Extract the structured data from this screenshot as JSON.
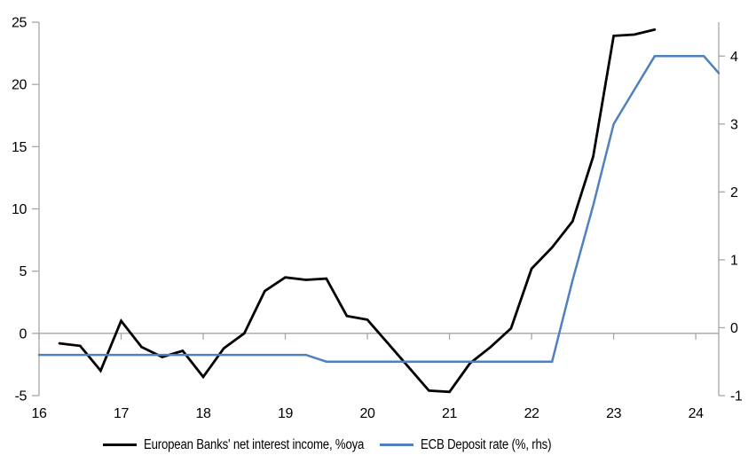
{
  "chart_data": {
    "type": "line",
    "title": "",
    "legend_position": "bottom",
    "background": "#FFFFFF",
    "x_axis": {
      "ticks": [
        16,
        17,
        18,
        19,
        20,
        21,
        22,
        23,
        24
      ],
      "range": [
        16,
        24.28
      ],
      "grid": false
    },
    "left_axis": {
      "ticks": [
        -5,
        0,
        5,
        10,
        15,
        20,
        25
      ],
      "range": [
        -5,
        25
      ],
      "zero_line": true
    },
    "right_axis": {
      "ticks": [
        -1,
        0,
        1,
        2,
        3,
        4
      ],
      "range": [
        -1,
        4.5
      ]
    },
    "series": [
      {
        "name": "European Banks' net interest income, %oya",
        "axis": "left",
        "color": "#000000",
        "x": [
          16.25,
          16.5,
          16.75,
          17.0,
          17.25,
          17.5,
          17.75,
          18.0,
          18.25,
          18.5,
          18.75,
          19.0,
          19.25,
          19.5,
          19.75,
          20.0,
          20.25,
          20.5,
          20.75,
          21.0,
          21.25,
          21.5,
          21.75,
          22.0,
          22.25,
          22.5,
          22.75,
          23.0,
          23.25,
          23.5
        ],
        "y": [
          -0.8,
          -1.0,
          -3.0,
          1.0,
          -1.1,
          -1.9,
          -1.4,
          -3.5,
          -1.2,
          0.0,
          3.4,
          4.5,
          4.3,
          4.4,
          1.4,
          1.1,
          -0.8,
          -2.7,
          -4.6,
          -4.7,
          -2.4,
          -1.1,
          0.4,
          5.2,
          6.9,
          9.0,
          14.2,
          23.9,
          24.0,
          24.4
        ]
      },
      {
        "name": "ECB Deposit rate (%, rhs)",
        "axis": "right",
        "color": "#4F81BD",
        "x": [
          16.0,
          19.25,
          19.5,
          22.25,
          22.5,
          22.75,
          23.0,
          23.25,
          23.5,
          23.75,
          24.1,
          24.28
        ],
        "y": [
          -0.4,
          -0.4,
          -0.5,
          -0.5,
          0.7,
          1.8,
          3.0,
          3.5,
          4.0,
          4.0,
          4.0,
          3.75
        ]
      }
    ],
    "colors": {
      "grid": "#A6A6A6",
      "axis": "#A6A6A6",
      "tick_text": "#000000"
    }
  }
}
